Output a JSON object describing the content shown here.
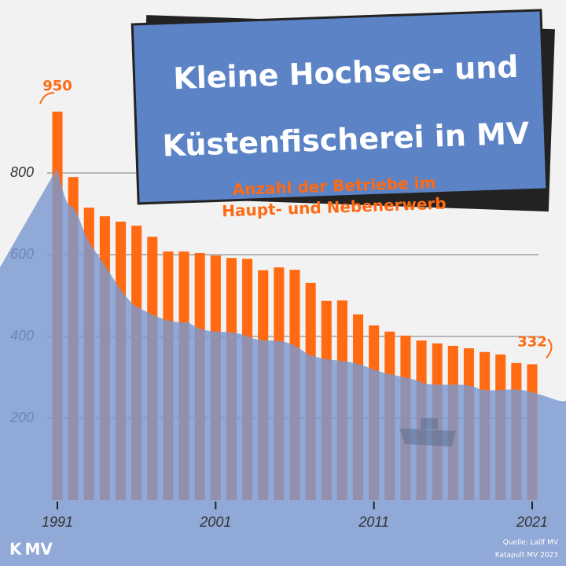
{
  "chart_data": {
    "type": "bar",
    "title_lines": [
      "Kleine Hochsee- und",
      "Küstenfischerei in MV"
    ],
    "subtitle_lines": [
      "Anzahl der Betriebe im",
      "Haupt- und Nebenerwerb"
    ],
    "x": [
      1991,
      1992,
      1993,
      1994,
      1995,
      1996,
      1997,
      1998,
      1999,
      2000,
      2001,
      2002,
      2003,
      2004,
      2005,
      2006,
      2007,
      2008,
      2009,
      2010,
      2011,
      2012,
      2013,
      2014,
      2015,
      2016,
      2017,
      2018,
      2019,
      2020,
      2021
    ],
    "values": [
      950,
      790,
      715,
      694,
      681,
      671,
      644,
      608,
      608,
      604,
      598,
      592,
      590,
      562,
      569,
      563,
      531,
      487,
      488,
      454,
      427,
      412,
      402,
      390,
      383,
      377,
      371,
      362,
      356,
      335,
      332
    ],
    "color": "#ff6a13",
    "xlim": [
      1991,
      2021
    ],
    "xticks": [
      1991,
      2001,
      2011,
      2021
    ],
    "ylim": [
      0,
      1000
    ],
    "yticks": [
      200,
      400,
      600,
      800
    ],
    "grid": true,
    "logo": "K MV",
    "source": "Quelle: Lallf MV",
    "credit": "Katapult MV 2023"
  }
}
